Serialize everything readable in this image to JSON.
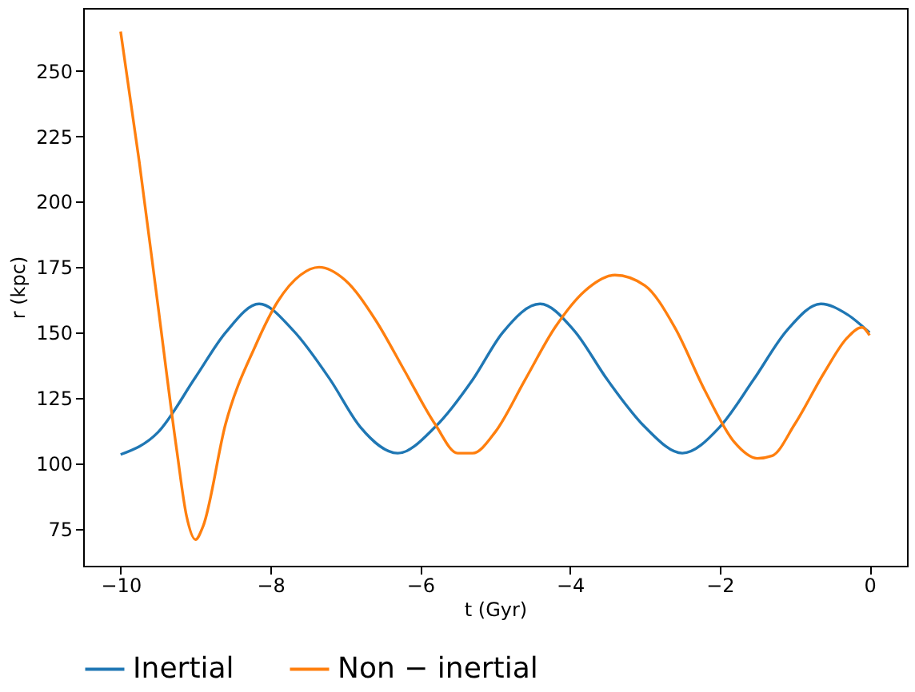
{
  "chart_data": {
    "type": "line",
    "xlabel": "t (Gyr)",
    "ylabel": "r (kpc)",
    "xlim": [
      -10.5,
      0.5
    ],
    "xticks": [
      -10,
      -8,
      -6,
      -4,
      -2,
      0
    ],
    "ylim": [
      61,
      274
    ],
    "yticks": [
      75,
      100,
      125,
      150,
      175,
      200,
      225,
      250
    ],
    "grid": false,
    "legend": "bottom",
    "marker": "none",
    "line_style": "solid",
    "series": [
      {
        "name": "Inertial",
        "color": "#1f77b4",
        "x": [
          -10,
          -9.5,
          -9.0,
          -8.6,
          -8.15,
          -7.7,
          -7.2,
          -6.8,
          -6.3,
          -5.8,
          -5.3,
          -4.9,
          -4.4,
          -3.95,
          -3.5,
          -3.0,
          -2.5,
          -2.0,
          -1.55,
          -1.1,
          -0.65,
          -0.3,
          0
        ],
        "values": [
          103.5,
          112,
          133,
          150,
          161,
          151,
          132,
          114,
          104,
          114,
          132,
          150,
          161,
          151,
          132,
          114,
          104,
          114,
          132,
          151,
          161,
          157,
          150
        ]
      },
      {
        "name": "Non − inertial",
        "color": "#ff7f0e",
        "x": [
          -10,
          -9.75,
          -9.5,
          -9.25,
          -9.12,
          -9.0,
          -8.9,
          -8.6,
          -8.2,
          -7.9,
          -7.6,
          -7.35,
          -7.0,
          -6.6,
          -6.2,
          -5.8,
          -5.5,
          -5.3,
          -5.0,
          -4.6,
          -4.2,
          -3.8,
          -3.4,
          -3.0,
          -2.6,
          -2.2,
          -1.8,
          -1.5,
          -1.3,
          -1.0,
          -0.6,
          -0.3,
          -0.1,
          0
        ],
        "values": [
          265,
          215,
          160,
          105,
          80,
          71,
          76,
          115,
          145,
          162,
          172,
          175,
          170,
          155,
          135,
          115,
          104,
          104,
          112,
          132,
          152,
          166,
          172,
          168,
          152,
          128,
          108,
          102,
          103,
          115,
          135,
          148,
          152,
          149
        ]
      }
    ]
  }
}
